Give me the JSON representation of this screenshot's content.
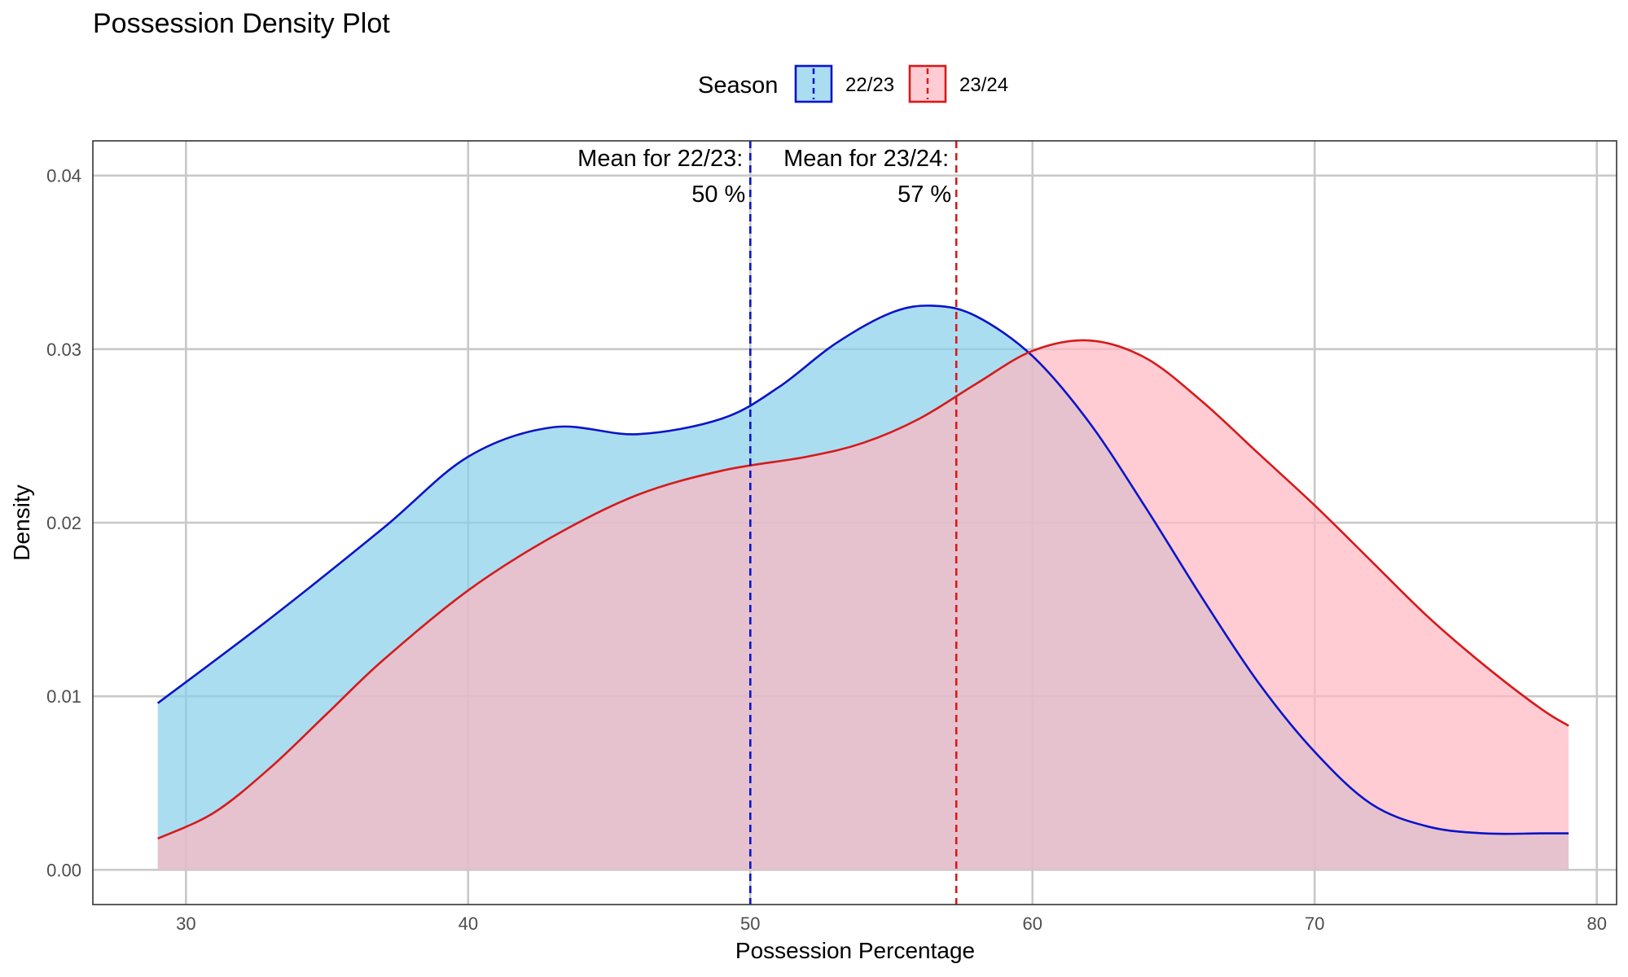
{
  "chart_data": {
    "type": "area",
    "title": "Possession Density Plot",
    "xlabel": "Possession Percentage",
    "ylabel": "Density",
    "xlim": [
      26.7,
      80.7
    ],
    "ylim": [
      -0.002,
      0.042
    ],
    "x_ticks": [
      30,
      40,
      50,
      60,
      70,
      80
    ],
    "y_ticks": [
      0.0,
      0.01,
      0.02,
      0.03,
      0.04
    ],
    "y_tick_labels": [
      "0.00",
      "0.01",
      "0.02",
      "0.03",
      "0.04"
    ],
    "grid": true,
    "legend": {
      "title": "Season",
      "position": "top",
      "entries": [
        "22/23",
        "23/24"
      ]
    },
    "series": [
      {
        "name": "22/23",
        "line_color": "#0a14c8",
        "fill_color": "#87ceeb",
        "x": [
          29,
          33,
          37,
          40,
          43,
          46,
          49,
          51,
          53,
          55,
          56.5,
          58,
          60,
          62,
          64,
          66,
          68,
          70,
          72,
          74,
          76,
          78,
          79
        ],
        "y": [
          0.0096,
          0.0145,
          0.0197,
          0.0238,
          0.0255,
          0.0251,
          0.026,
          0.0278,
          0.0303,
          0.0321,
          0.0325,
          0.0319,
          0.0296,
          0.0258,
          0.0209,
          0.0157,
          0.0108,
          0.0068,
          0.0038,
          0.0025,
          0.0021,
          0.0021,
          0.0021
        ]
      },
      {
        "name": "23/24",
        "line_color": "#d61a1a",
        "fill_color": "#ffb6c1",
        "x": [
          29,
          31,
          33,
          35,
          37,
          40,
          43,
          46,
          49,
          52,
          54,
          56,
          58,
          60,
          62,
          64,
          66,
          68,
          70,
          72,
          74,
          76,
          78,
          79
        ],
        "y": [
          0.0018,
          0.0033,
          0.0059,
          0.009,
          0.0121,
          0.0161,
          0.0192,
          0.0216,
          0.023,
          0.0238,
          0.0246,
          0.026,
          0.028,
          0.0299,
          0.0305,
          0.0295,
          0.027,
          0.024,
          0.021,
          0.0178,
          0.0146,
          0.0118,
          0.0093,
          0.0083
        ]
      }
    ],
    "mean_lines": [
      {
        "series": "22/23",
        "x": 50,
        "color": "#0a14c8",
        "label": "Mean for 22/23:",
        "value_label": "50 %"
      },
      {
        "series": "23/24",
        "x": 57.3,
        "color": "#d61a1a",
        "label": "Mean for 23/24:",
        "value_label": "57 %"
      }
    ]
  }
}
